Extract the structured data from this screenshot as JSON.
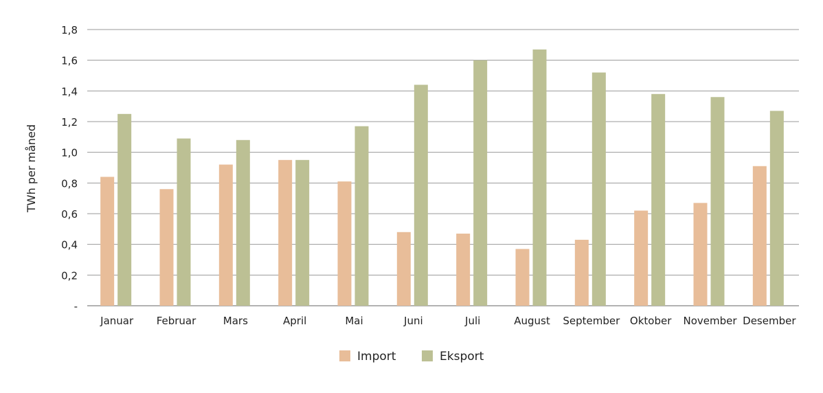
{
  "chart_data": {
    "type": "bar",
    "title": "",
    "xlabel": "",
    "ylabel": "TWh per måned",
    "ylim": [
      0,
      1.8
    ],
    "yticks": [
      0,
      0.2,
      0.4,
      0.6,
      0.8,
      1.0,
      1.2,
      1.4,
      1.6,
      1.8
    ],
    "ytick_labels": [
      "-",
      "0,2",
      "0,4",
      "0,6",
      "0,8",
      "1,0",
      "1,2",
      "1,4",
      "1,6",
      "1,8"
    ],
    "grid": true,
    "legend_position": "bottom-center",
    "categories": [
      "Januar",
      "Februar",
      "Mars",
      "April",
      "Mai",
      "Juni",
      "Juli",
      "August",
      "September",
      "Oktober",
      "November",
      "Desember"
    ],
    "series": [
      {
        "name": "Import",
        "color": "#E8BD99",
        "values": [
          0.84,
          0.76,
          0.92,
          0.95,
          0.81,
          0.48,
          0.47,
          0.37,
          0.43,
          0.62,
          0.67,
          0.91
        ]
      },
      {
        "name": "Eksport",
        "color": "#BCC094",
        "values": [
          1.25,
          1.09,
          1.08,
          0.95,
          1.17,
          1.44,
          1.6,
          1.67,
          1.52,
          1.38,
          1.36,
          1.27
        ]
      }
    ]
  }
}
